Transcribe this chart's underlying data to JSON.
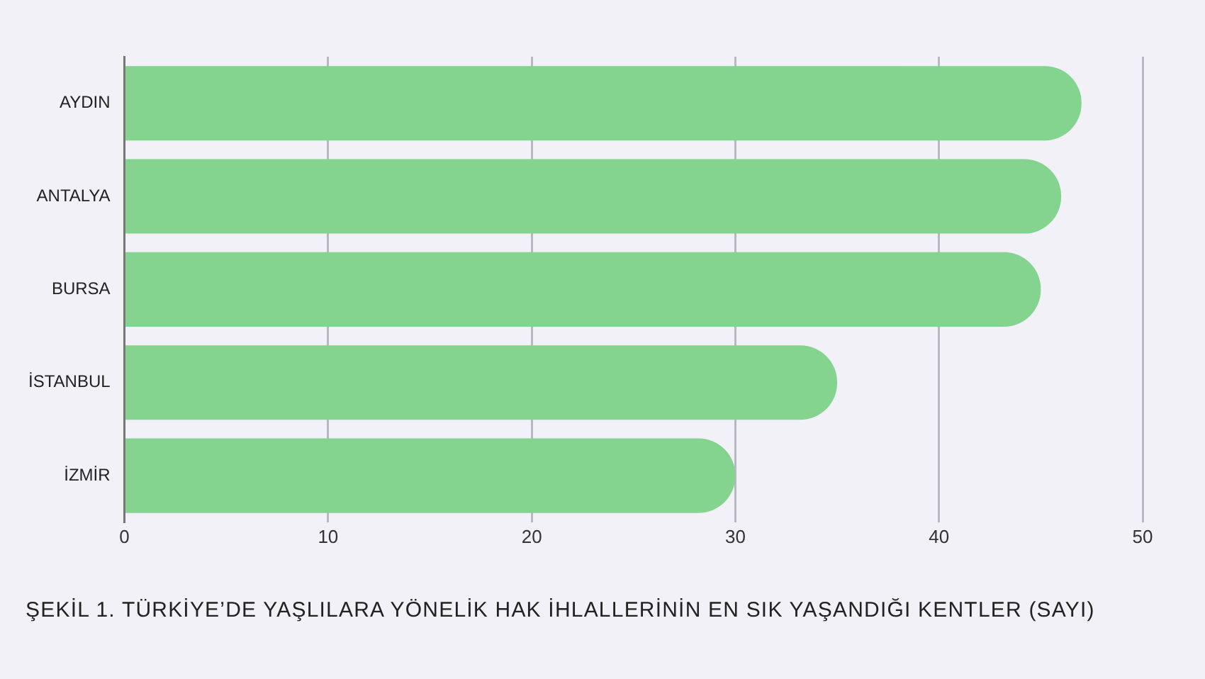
{
  "chart_data": {
    "type": "bar",
    "orientation": "horizontal",
    "title": "ŞEKİL 1. TÜRKİYE’DE YAŞLILARA YÖNELİK HAK İHLALLERİNİN EN SIK YAŞANDIĞI KENTLER (SAYI)",
    "categories": [
      "AYDIN",
      "ANTALYA",
      "BURSA",
      "İSTANBUL",
      "İZMİR"
    ],
    "values": [
      47,
      46,
      45,
      35,
      30
    ],
    "color": "#84d490",
    "xlim": [
      0,
      50
    ],
    "xticks": [
      0,
      10,
      20,
      30,
      40,
      50
    ],
    "grid": "x"
  }
}
